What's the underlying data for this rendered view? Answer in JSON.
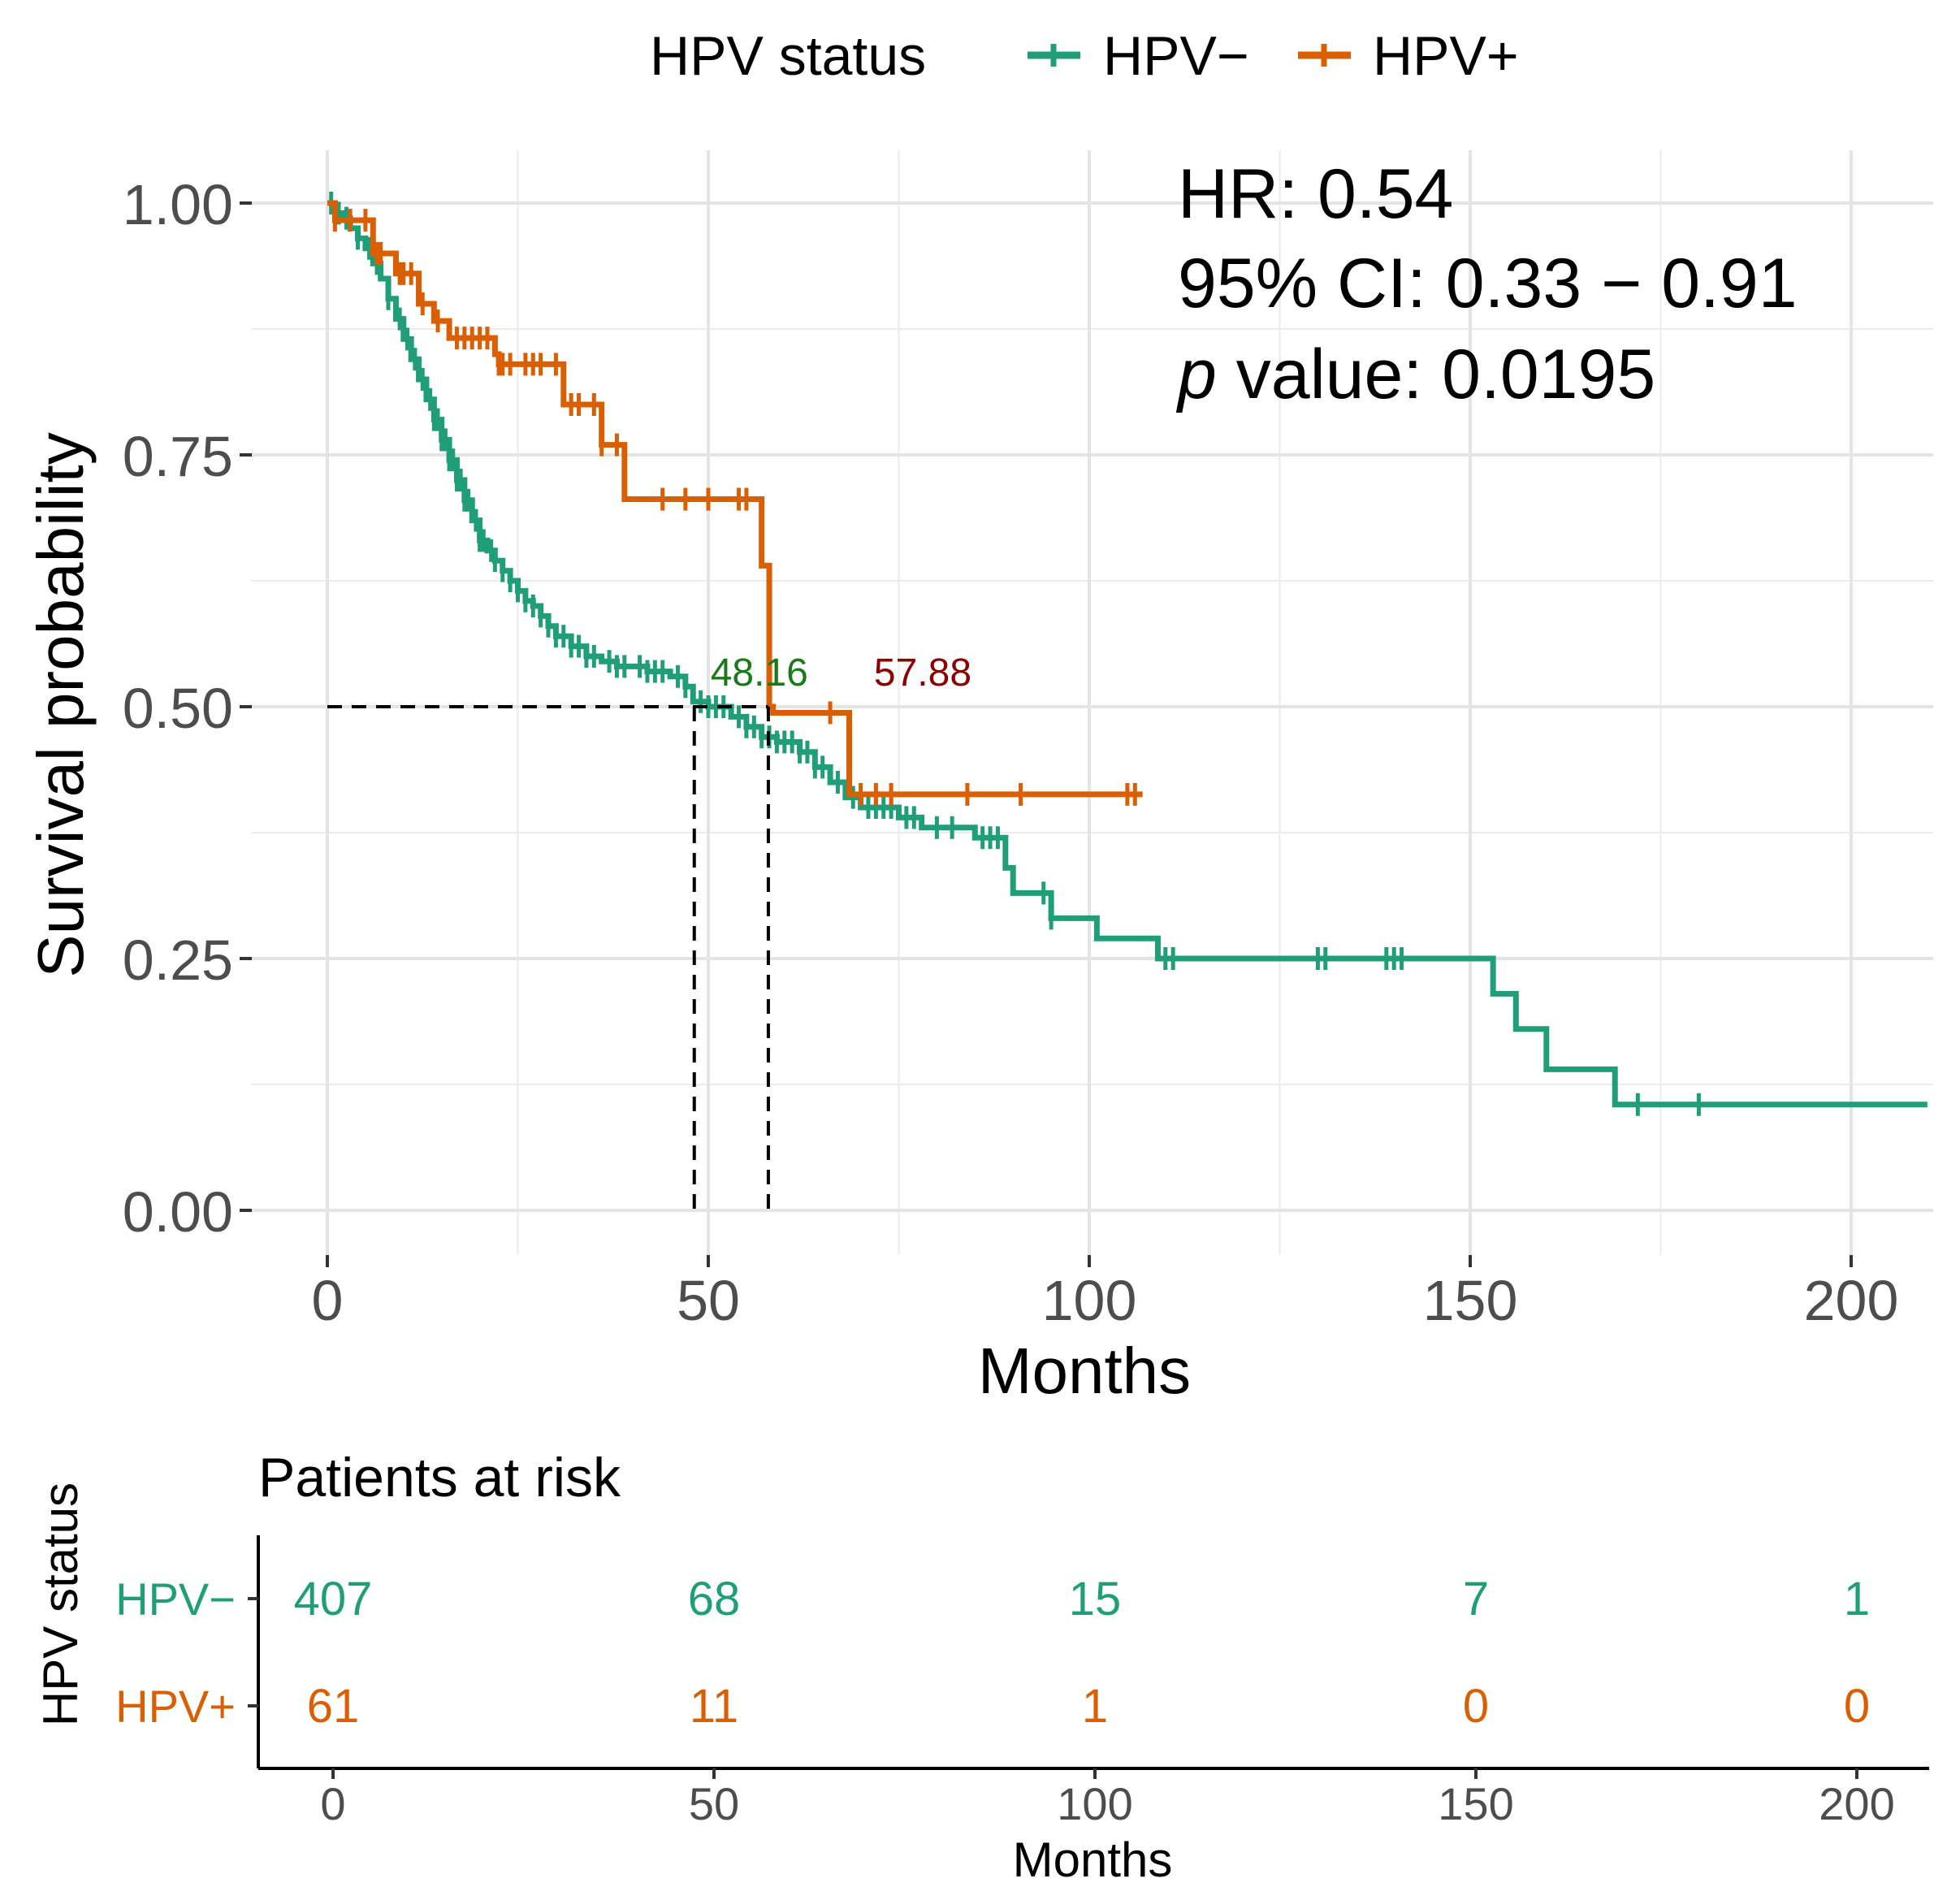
{
  "chart_data": [
    {
      "type": "line",
      "subtype": "kaplan-meier",
      "legend": {
        "title": "HPV status",
        "placement": "top"
      },
      "xlabel": "Months",
      "ylabel": "Survival probability",
      "xlim": [
        -10,
        210
      ],
      "ylim": [
        0,
        1
      ],
      "x_ticks": [
        "0",
        "50",
        "100",
        "150",
        "200"
      ],
      "y_ticks": [
        "0.00",
        "0.25",
        "0.50",
        "0.75",
        "1.00"
      ],
      "annotation": {
        "hr": "HR: 0.54",
        "ci": "95% CI: 0.33 − 0.91",
        "p_prefix": "p",
        "p_rest": " value: 0.0195"
      },
      "median_survival": [
        {
          "series": "HPV−",
          "label": "48.16",
          "value": 48.16,
          "color": "#1a7a1a"
        },
        {
          "series": "HPV+",
          "label": "57.88",
          "value": 57.88,
          "color": "#8b0000"
        }
      ],
      "series": [
        {
          "name": "HPV−",
          "color": "#1f9e78",
          "steps": [
            [
              0,
              1.0
            ],
            [
              1,
              0.99
            ],
            [
              2,
              0.985
            ],
            [
              3,
              0.975
            ],
            [
              4,
              0.965
            ],
            [
              5,
              0.955
            ],
            [
              6,
              0.94
            ],
            [
              7,
              0.925
            ],
            [
              8,
              0.905
            ],
            [
              9,
              0.885
            ],
            [
              10,
              0.865
            ],
            [
              11,
              0.845
            ],
            [
              12,
              0.825
            ],
            [
              13,
              0.805
            ],
            [
              14,
              0.785
            ],
            [
              15,
              0.765
            ],
            [
              16,
              0.745
            ],
            [
              17,
              0.725
            ],
            [
              18,
              0.705
            ],
            [
              19,
              0.685
            ],
            [
              20,
              0.665
            ],
            [
              21,
              0.655
            ],
            [
              22,
              0.645
            ],
            [
              23,
              0.635
            ],
            [
              24,
              0.625
            ],
            [
              25,
              0.615
            ],
            [
              26,
              0.605
            ],
            [
              27,
              0.6
            ],
            [
              28,
              0.59
            ],
            [
              29,
              0.58
            ],
            [
              30,
              0.57
            ],
            [
              32,
              0.56
            ],
            [
              34,
              0.55
            ],
            [
              36,
              0.545
            ],
            [
              38,
              0.54
            ],
            [
              42,
              0.535
            ],
            [
              45,
              0.53
            ],
            [
              47,
              0.52
            ],
            [
              48,
              0.505
            ],
            [
              50,
              0.5
            ],
            [
              53,
              0.49
            ],
            [
              55,
              0.48
            ],
            [
              57,
              0.47
            ],
            [
              59,
              0.465
            ],
            [
              62,
              0.455
            ],
            [
              64,
              0.44
            ],
            [
              66,
              0.425
            ],
            [
              68,
              0.41
            ],
            [
              70,
              0.4
            ],
            [
              75,
              0.39
            ],
            [
              78,
              0.38
            ],
            [
              85,
              0.37
            ],
            [
              89,
              0.34
            ],
            [
              90,
              0.315
            ],
            [
              95,
              0.29
            ],
            [
              101,
              0.27
            ],
            [
              109,
              0.25
            ],
            [
              153,
              0.215
            ],
            [
              156,
              0.18
            ],
            [
              160,
              0.14
            ],
            [
              169,
              0.105
            ],
            [
              210,
              0.105
            ]
          ],
          "censor_x": [
            0.5,
            1.5,
            2.5,
            4,
            5.5,
            6.5,
            8,
            9.5,
            10.5,
            11.5,
            12.5,
            13.5,
            14,
            14.5,
            15,
            15.5,
            16,
            16.5,
            17,
            17.5,
            18,
            18.5,
            19.5,
            20,
            20.5,
            21.5,
            22,
            23,
            24,
            25,
            26,
            27,
            28,
            29,
            30,
            31,
            32,
            33,
            34,
            35,
            37,
            38,
            39,
            41,
            42,
            43,
            44,
            46,
            47,
            49,
            50,
            51,
            52,
            54,
            55,
            56,
            57,
            58,
            59,
            60,
            61,
            62,
            63,
            64,
            65,
            67,
            69,
            71,
            72,
            73,
            74,
            76,
            77,
            80,
            82,
            86,
            87,
            88,
            94,
            95,
            110,
            111,
            130,
            131,
            139,
            140,
            141,
            172,
            180
          ],
          "at_risk": [
            "407",
            "68",
            "15",
            "7",
            "1"
          ]
        },
        {
          "name": "HPV+",
          "color": "#d95f02",
          "steps": [
            [
              0,
              1.0
            ],
            [
              1,
              0.983
            ],
            [
              6,
              0.95
            ],
            [
              9,
              0.93
            ],
            [
              12,
              0.9
            ],
            [
              14,
              0.883
            ],
            [
              16,
              0.866
            ],
            [
              22,
              0.85
            ],
            [
              22.5,
              0.84
            ],
            [
              31,
              0.8
            ],
            [
              36,
              0.76
            ],
            [
              39,
              0.706
            ],
            [
              57,
              0.64
            ],
            [
              58,
              0.5
            ],
            [
              58.5,
              0.494
            ],
            [
              68.5,
              0.413
            ],
            [
              107,
              0.413
            ]
          ],
          "censor_x": [
            1,
            3,
            5,
            6.5,
            7,
            9.5,
            10,
            11,
            12.5,
            14.5,
            17,
            18,
            19,
            20,
            21,
            22.5,
            23,
            24,
            26,
            27,
            28,
            30,
            32,
            33,
            35,
            36,
            38,
            44,
            47,
            50,
            54,
            55,
            66,
            70,
            72,
            74,
            84,
            91,
            105,
            106
          ],
          "at_risk": [
            "61",
            "11",
            "1",
            "0",
            "0"
          ]
        }
      ],
      "risk_table": {
        "title": "Patients at risk",
        "ylabel": "HPV status",
        "xlabel": "Months",
        "row_labels": [
          "HPV−",
          "HPV+"
        ],
        "x_ticks": [
          "0",
          "50",
          "100",
          "150",
          "200"
        ]
      }
    }
  ]
}
